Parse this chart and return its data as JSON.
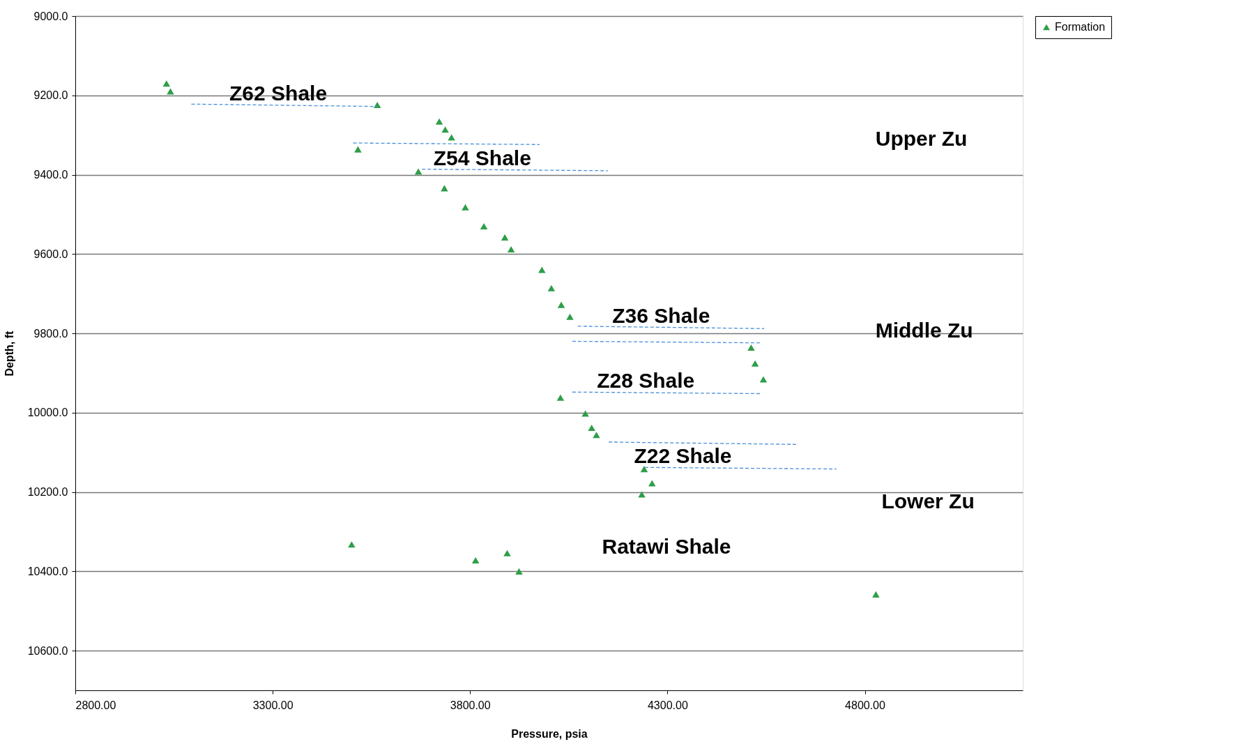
{
  "chart_data": {
    "type": "scatter",
    "xlabel": "Pressure, psia",
    "ylabel": "Depth, ft",
    "xlim": [
      2800,
      5200
    ],
    "ylim": [
      10700,
      9000
    ],
    "xticks": [
      {
        "value": 2800,
        "label": "2800.00"
      },
      {
        "value": 3300,
        "label": "3300.00"
      },
      {
        "value": 3800,
        "label": "3800.00"
      },
      {
        "value": 4300,
        "label": "4300.00"
      },
      {
        "value": 4800,
        "label": "4800.00"
      }
    ],
    "yticks": [
      {
        "value": 9000,
        "label": "9000.0"
      },
      {
        "value": 9200,
        "label": "9200.0"
      },
      {
        "value": 9400,
        "label": "9400.0"
      },
      {
        "value": 9600,
        "label": "9600.0"
      },
      {
        "value": 9800,
        "label": "9800.0"
      },
      {
        "value": 10000,
        "label": "10000.0"
      },
      {
        "value": 10200,
        "label": "10200.0"
      },
      {
        "value": 10400,
        "label": "10400.0"
      },
      {
        "value": 10600,
        "label": "10600.0"
      }
    ],
    "grid": "y",
    "legend": "right",
    "marker": "triangle",
    "series": [
      {
        "name": "Formation",
        "color": "#2e9e48",
        "x": [
          3031,
          3041,
          3565,
          3722,
          3737,
          3753,
          3516,
          3669,
          3735,
          3788,
          3835,
          3888,
          3904,
          3982,
          4006,
          4031,
          4053,
          4512,
          4522,
          4543,
          4029,
          4092,
          4108,
          4120,
          4241,
          4261,
          4235,
          3500,
          3814,
          3894,
          3924,
          4828
        ],
        "values": [
          9170,
          9190,
          9224,
          9266,
          9286,
          9306,
          9336,
          9392,
          9434,
          9482,
          9530,
          9558,
          9588,
          9640,
          9686,
          9728,
          9758,
          9836,
          9876,
          9916,
          9962,
          10002,
          10038,
          10056,
          10142,
          10178,
          10206,
          10332,
          10372,
          10354,
          10400,
          10458
        ]
      },
      {
        "type": "line",
        "marker": "none",
        "line_style": "dashed",
        "color": "#4a90d9",
        "x": [
          3094,
          3565
        ],
        "values": [
          9222,
          9228
        ]
      },
      {
        "type": "line",
        "marker": "none",
        "line_style": "dashed",
        "color": "#4a90d9",
        "x": [
          3504,
          3976
        ],
        "values": [
          9320,
          9324
        ]
      },
      {
        "type": "line",
        "marker": "none",
        "line_style": "dashed",
        "color": "#4a90d9",
        "x": [
          3678,
          4149
        ],
        "values": [
          9386,
          9390
        ]
      },
      {
        "type": "line",
        "marker": "none",
        "line_style": "dashed",
        "color": "#4a90d9",
        "x": [
          4073,
          4545
        ],
        "values": [
          9782,
          9788
        ]
      },
      {
        "type": "line",
        "marker": "none",
        "line_style": "dashed",
        "color": "#4a90d9",
        "x": [
          4059,
          4534
        ],
        "values": [
          9820,
          9824
        ]
      },
      {
        "type": "line",
        "marker": "none",
        "line_style": "dashed",
        "color": "#4a90d9",
        "x": [
          4059,
          4534
        ],
        "values": [
          9948,
          9952
        ]
      },
      {
        "type": "line",
        "marker": "none",
        "line_style": "dashed",
        "color": "#4a90d9",
        "x": [
          4151,
          4626
        ],
        "values": [
          10074,
          10080
        ]
      },
      {
        "type": "line",
        "marker": "none",
        "line_style": "dashed",
        "color": "#4a90d9",
        "x": [
          4243,
          4728
        ],
        "values": [
          10138,
          10142
        ]
      }
    ],
    "annotations": [
      {
        "text": "Z62 Shale",
        "x": 3314,
        "y": 9225
      },
      {
        "text": "Z54 Shale",
        "x": 3831,
        "y": 9388
      },
      {
        "text": "Z36 Shale",
        "x": 4284,
        "y": 9785
      },
      {
        "text": "Z28 Shale",
        "x": 4245,
        "y": 9950
      },
      {
        "text": "Z22 Shale",
        "x": 4339,
        "y": 10140
      },
      "Ratawi Shale",
      "Upper Zu",
      "Middle Zu",
      "Lower Zu"
    ]
  }
}
